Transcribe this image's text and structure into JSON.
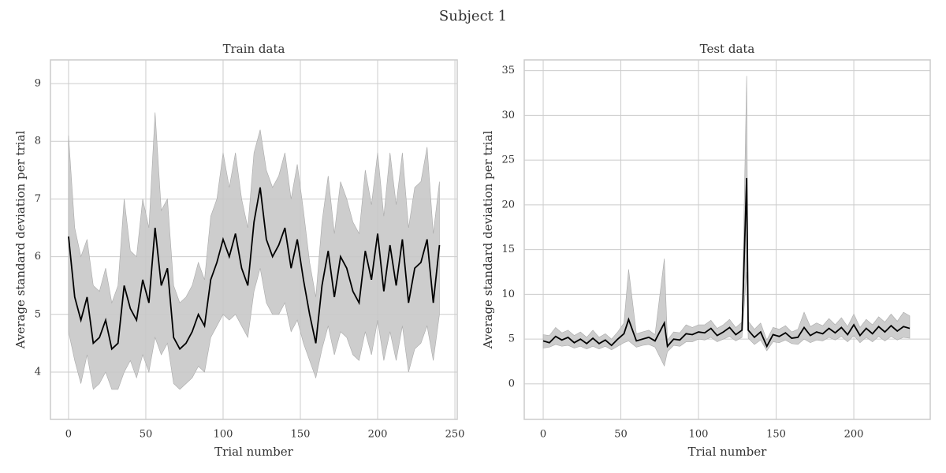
{
  "title": "Subject 1",
  "chart_data": [
    {
      "type": "line",
      "title": "Train data",
      "xlabel": "Trial number",
      "ylabel": "Average standard deviation per trial",
      "xlim": [
        -11.7,
        251.5
      ],
      "ylim": [
        3.18,
        9.41
      ],
      "xticks": [
        0,
        50,
        100,
        150,
        200,
        250
      ],
      "yticks": [
        4,
        5,
        6,
        7,
        8,
        9
      ],
      "grid": true,
      "x": [
        0,
        4,
        8,
        12,
        16,
        20,
        24,
        28,
        32,
        36,
        40,
        44,
        48,
        52,
        56,
        60,
        64,
        68,
        72,
        76,
        80,
        84,
        88,
        92,
        96,
        100,
        104,
        108,
        112,
        116,
        120,
        124,
        128,
        132,
        136,
        140,
        144,
        148,
        152,
        156,
        160,
        164,
        168,
        172,
        176,
        180,
        184,
        188,
        192,
        196,
        200,
        204,
        208,
        212,
        216,
        220,
        224,
        228,
        232,
        236,
        240
      ],
      "series": [
        {
          "color": "#000000",
          "values": [
            6.35,
            5.3,
            4.9,
            5.3,
            4.5,
            4.6,
            4.9,
            4.4,
            4.5,
            5.5,
            5.1,
            4.9,
            5.6,
            5.2,
            6.5,
            5.5,
            5.8,
            4.6,
            4.4,
            4.5,
            4.7,
            5.0,
            4.8,
            5.6,
            5.9,
            6.3,
            6.0,
            6.4,
            5.8,
            5.5,
            6.6,
            7.2,
            6.3,
            6.0,
            6.2,
            6.5,
            5.8,
            6.3,
            5.6,
            5.0,
            4.5,
            5.5,
            6.1,
            5.3,
            6.0,
            5.8,
            5.4,
            5.2,
            6.1,
            5.6,
            6.4,
            5.4,
            6.2,
            5.5,
            6.3,
            5.2,
            5.8,
            5.9,
            6.3,
            5.2,
            6.2
          ]
        }
      ],
      "band": {
        "color": "#c8c8c8",
        "lower": [
          4.7,
          4.2,
          3.8,
          4.3,
          3.7,
          3.8,
          4.0,
          3.7,
          3.7,
          4.0,
          4.2,
          3.9,
          4.3,
          4.0,
          4.6,
          4.3,
          4.5,
          3.8,
          3.7,
          3.8,
          3.9,
          4.1,
          4.0,
          4.6,
          4.8,
          5.0,
          4.9,
          5.0,
          4.8,
          4.6,
          5.4,
          5.8,
          5.2,
          5.0,
          5.0,
          5.2,
          4.7,
          4.9,
          4.5,
          4.2,
          3.9,
          4.4,
          4.8,
          4.3,
          4.7,
          4.6,
          4.3,
          4.2,
          4.7,
          4.3,
          4.9,
          4.2,
          4.7,
          4.2,
          4.8,
          4.0,
          4.4,
          4.5,
          4.8,
          4.2,
          5.0
        ],
        "upper": [
          8.1,
          6.5,
          6.0,
          6.3,
          5.5,
          5.4,
          5.8,
          5.2,
          5.5,
          7.0,
          6.1,
          6.0,
          7.0,
          6.5,
          8.5,
          6.8,
          7.0,
          5.5,
          5.2,
          5.3,
          5.5,
          5.9,
          5.6,
          6.7,
          7.0,
          7.8,
          7.2,
          7.8,
          7.0,
          6.5,
          7.8,
          8.2,
          7.5,
          7.2,
          7.4,
          7.8,
          7.0,
          7.6,
          6.8,
          5.9,
          5.3,
          6.6,
          7.4,
          6.4,
          7.3,
          7.0,
          6.6,
          6.4,
          7.5,
          6.9,
          7.8,
          6.7,
          7.8,
          6.9,
          7.8,
          6.5,
          7.2,
          7.3,
          7.9,
          6.4,
          7.3
        ]
      }
    },
    {
      "type": "line",
      "title": "Test data",
      "xlabel": "Trial number",
      "ylabel": "Average standard deviation per trial",
      "xlim": [
        -12.2,
        249.2
      ],
      "ylim": [
        -3.97,
        36.2
      ],
      "xticks": [
        0,
        50,
        100,
        150,
        200
      ],
      "yticks": [
        0,
        5,
        10,
        15,
        20,
        25,
        30,
        35
      ],
      "grid": true,
      "x": [
        0,
        4,
        8,
        12,
        16,
        20,
        24,
        28,
        32,
        36,
        40,
        44,
        48,
        52,
        55,
        60,
        64,
        68,
        72,
        78,
        80,
        84,
        88,
        92,
        96,
        100,
        104,
        108,
        112,
        116,
        120,
        124,
        128,
        131,
        132,
        136,
        140,
        144,
        148,
        152,
        156,
        160,
        164,
        168,
        172,
        176,
        180,
        184,
        188,
        192,
        196,
        200,
        204,
        208,
        212,
        216,
        220,
        224,
        228,
        232,
        236
      ],
      "series": [
        {
          "color": "#000000",
          "values": [
            4.8,
            4.6,
            5.3,
            4.9,
            5.2,
            4.6,
            5.0,
            4.5,
            5.1,
            4.5,
            4.9,
            4.3,
            5.0,
            5.6,
            7.2,
            4.8,
            5.0,
            5.2,
            4.8,
            6.8,
            4.2,
            5.0,
            4.9,
            5.6,
            5.5,
            5.8,
            5.7,
            6.2,
            5.4,
            5.8,
            6.3,
            5.5,
            6.0,
            23.0,
            6.0,
            5.2,
            5.8,
            4.2,
            5.5,
            5.3,
            5.7,
            5.1,
            5.2,
            6.3,
            5.4,
            5.8,
            5.6,
            6.2,
            5.7,
            6.3,
            5.5,
            6.6,
            5.4,
            6.2,
            5.6,
            6.4,
            5.8,
            6.5,
            5.9,
            6.4,
            6.2
          ]
        }
      ],
      "band": {
        "color": "#c8c8c8",
        "lower": [
          4.0,
          4.1,
          4.4,
          4.2,
          4.3,
          4.0,
          4.2,
          3.9,
          4.2,
          3.9,
          4.2,
          3.8,
          4.2,
          4.6,
          4.8,
          4.1,
          4.3,
          4.4,
          4.1,
          2.0,
          3.6,
          4.3,
          4.2,
          4.7,
          4.7,
          5.0,
          4.9,
          5.2,
          4.7,
          5.0,
          5.3,
          4.8,
          5.2,
          12.5,
          5.1,
          4.4,
          4.9,
          3.7,
          4.7,
          4.6,
          4.9,
          4.5,
          4.4,
          5.0,
          4.6,
          4.9,
          4.8,
          5.2,
          4.9,
          5.3,
          4.7,
          5.4,
          4.6,
          5.2,
          4.7,
          5.3,
          4.8,
          5.3,
          4.9,
          5.2,
          5.1
        ],
        "upper": [
          5.5,
          5.4,
          6.3,
          5.7,
          6.0,
          5.4,
          5.8,
          5.2,
          6.0,
          5.2,
          5.6,
          5.0,
          5.8,
          6.8,
          12.8,
          5.6,
          5.8,
          6.0,
          5.5,
          14.0,
          4.9,
          5.8,
          5.7,
          6.6,
          6.3,
          6.6,
          6.6,
          7.1,
          6.2,
          6.6,
          7.2,
          6.3,
          6.9,
          34.4,
          7.0,
          6.1,
          6.8,
          4.9,
          6.3,
          6.1,
          6.5,
          5.8,
          6.1,
          8.0,
          6.4,
          6.8,
          6.5,
          7.3,
          6.6,
          7.4,
          6.4,
          7.8,
          6.3,
          7.2,
          6.6,
          7.5,
          6.9,
          7.8,
          7.0,
          8.0,
          7.6
        ]
      }
    }
  ]
}
